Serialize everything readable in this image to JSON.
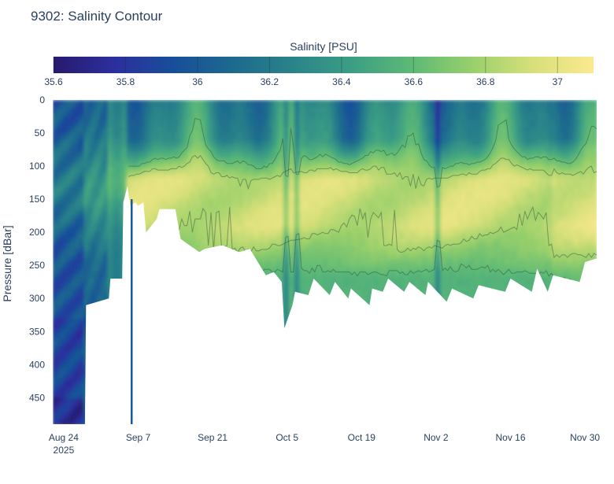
{
  "chart_data": {
    "type": "heatmap",
    "title": "9302: Salinity Contour",
    "xlabel": "",
    "ylabel": "Pressure [dBar]",
    "colorbar": {
      "title": "Salinity [PSU]",
      "range": [
        35.6,
        37.1
      ],
      "ticks": [
        35.6,
        35.8,
        36,
        36.2,
        36.4,
        36.6,
        36.8,
        37
      ],
      "tick_labels": [
        "35.6",
        "35.8",
        "36",
        "36.2",
        "36.4",
        "36.6",
        "36.8",
        "37"
      ],
      "colorscale": [
        "#271a6c",
        "#2b2f9e",
        "#184e9a",
        "#1d6a8e",
        "#2a8489",
        "#3c9f84",
        "#5eba75",
        "#9ad06b",
        "#d8e07a",
        "#fbe98f"
      ]
    },
    "x_axis": {
      "range_days_since_aug24": [
        -2.2,
        100.2
      ],
      "ticks": [
        {
          "day": 0,
          "label": "Aug 24",
          "sublabel": "2025"
        },
        {
          "day": 14,
          "label": "Sep 7",
          "sublabel": ""
        },
        {
          "day": 28,
          "label": "Sep 21",
          "sublabel": ""
        },
        {
          "day": 42,
          "label": "Oct 5",
          "sublabel": ""
        },
        {
          "day": 56,
          "label": "Oct 19",
          "sublabel": ""
        },
        {
          "day": 70,
          "label": "Nov 2",
          "sublabel": ""
        },
        {
          "day": 84,
          "label": "Nov 16",
          "sublabel": ""
        },
        {
          "day": 98,
          "label": "Nov 30",
          "sublabel": ""
        }
      ]
    },
    "y_axis": {
      "range": [
        0,
        490
      ],
      "reversed": true,
      "ticks": [
        0,
        50,
        100,
        150,
        200,
        250,
        300,
        350,
        400,
        450
      ],
      "tick_labels": [
        "0",
        "50",
        "100",
        "150",
        "200",
        "250",
        "300",
        "350",
        "400",
        "450"
      ]
    },
    "max_depth_profile": {
      "day": [
        -2,
        4,
        4.2,
        8.5,
        8.8,
        11,
        11.2,
        12,
        12.5,
        13.5,
        14,
        15,
        15.5,
        17.5,
        18,
        21,
        22,
        25.5,
        26.5,
        29.5,
        30,
        33,
        35,
        38,
        39.5,
        41,
        41.5,
        43,
        43.5,
        46,
        47,
        50,
        51,
        53.5,
        54,
        57.5,
        58,
        60,
        61,
        64,
        65,
        68,
        68.5,
        72,
        73,
        77,
        78,
        83,
        84,
        88,
        89,
        91,
        92,
        97,
        98,
        100
      ],
      "pressure": [
        490,
        490,
        310,
        300,
        270,
        270,
        155,
        130,
        160,
        155,
        160,
        155,
        200,
        180,
        165,
        165,
        210,
        230,
        225,
        220,
        220,
        230,
        225,
        265,
        260,
        275,
        345,
        310,
        290,
        295,
        270,
        295,
        275,
        300,
        285,
        310,
        285,
        290,
        270,
        290,
        275,
        295,
        275,
        305,
        285,
        300,
        280,
        290,
        270,
        290,
        255,
        290,
        265,
        275,
        245,
        240
      ]
    },
    "features": {
      "low_salinity_column_days": [
        -2,
        4
      ],
      "halocline_band_dbar": [
        80,
        200
      ],
      "surface_band_dbar": [
        0,
        80
      ],
      "core_salinity_psu": 36.9,
      "surface_salinity_psu": 36.25,
      "deep_salinity_psu": 36.55,
      "deep_column_salinity_psu": 35.95
    }
  }
}
